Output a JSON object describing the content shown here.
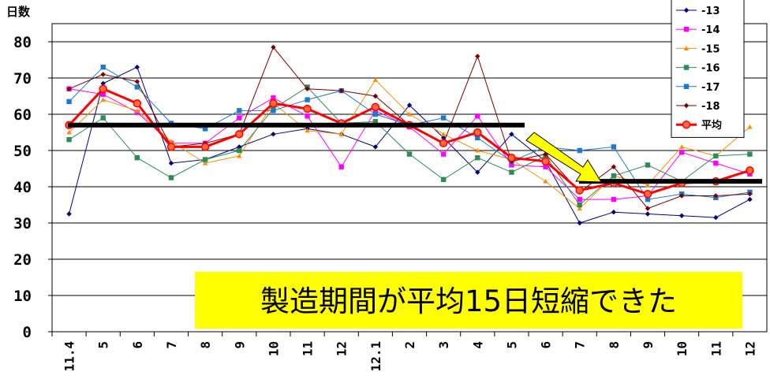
{
  "chart_data": {
    "type": "line",
    "ylabel": "日数",
    "ylim": [
      0,
      85
    ],
    "yticks": [
      0,
      10,
      20,
      30,
      40,
      50,
      60,
      70,
      80
    ],
    "categories": [
      "11.4",
      "5",
      "6",
      "7",
      "8",
      "9",
      "10",
      "11",
      "12",
      "12.1",
      "2",
      "3",
      "4",
      "5",
      "6",
      "7",
      "8",
      "9",
      "10",
      "11",
      "12"
    ],
    "series": [
      {
        "name": "-13",
        "color": "#000080",
        "marker": "diamond",
        "values": [
          32.5,
          68.5,
          73,
          46.5,
          47.5,
          51,
          54.5,
          56,
          54.5,
          51,
          62.5,
          53.5,
          44,
          54.5,
          47,
          30,
          33,
          32.5,
          32,
          31.5,
          36.5
        ]
      },
      {
        "name": "-14",
        "color": "#ff00ff",
        "marker": "square",
        "values": [
          67,
          65.5,
          60.5,
          52,
          52,
          59,
          64.5,
          59.5,
          45.5,
          61,
          56.5,
          49,
          59.5,
          46,
          45.5,
          36.5,
          36.5,
          37.5,
          49.5,
          46.5,
          43.5
        ]
      },
      {
        "name": "-15",
        "color": "#ff8c00",
        "marker": "triangle",
        "values": [
          55,
          64,
          61,
          52.5,
          46.5,
          48.5,
          63,
          55.5,
          54.5,
          69.5,
          60,
          54.5,
          50,
          47.5,
          41.5,
          34,
          43,
          40.5,
          51,
          48.5,
          56.5
        ]
      },
      {
        "name": "-16",
        "color": "#2e8b57",
        "marker": "square",
        "values": [
          53,
          59,
          48,
          42.5,
          47.5,
          50,
          61.5,
          67.5,
          57.5,
          58,
          49,
          42,
          48,
          44,
          48.5,
          35,
          43,
          46,
          41.5,
          48.5,
          49
        ]
      },
      {
        "name": "-17",
        "color": "#1e78d2",
        "marker": "square",
        "values": [
          63.5,
          73,
          67.5,
          57.5,
          56,
          61,
          61,
          64,
          66.5,
          60,
          57,
          59,
          53.5,
          47,
          51,
          50,
          51,
          36.5,
          38,
          37,
          38.5
        ]
      },
      {
        "name": "-18",
        "color": "#7a0000",
        "marker": "diamond",
        "values": [
          67,
          71,
          69,
          51,
          52,
          54.5,
          78.5,
          67,
          66.5,
          65,
          57,
          52,
          76,
          47,
          49,
          38.5,
          45.5,
          34,
          37.5,
          37.5,
          38
        ]
      },
      {
        "name": "平均",
        "color": "#ff0000",
        "marker": "circle",
        "values": [
          57,
          67,
          63,
          51,
          51,
          54.5,
          63,
          61.5,
          57.5,
          62,
          57,
          52,
          55,
          48,
          47,
          39,
          41,
          38,
          41,
          41.5,
          44.5
        ]
      }
    ],
    "reference_lines": [
      {
        "value": 57,
        "from": "11.4",
        "to": "5"
      },
      {
        "value": 41.5,
        "from": "7",
        "to": "12"
      }
    ],
    "annotation": "製造期間が平均15日短縮できた",
    "colors": {
      "reference_line": "#000000",
      "arrow": "#ffff00",
      "callout_bg": "#ffff00"
    }
  }
}
